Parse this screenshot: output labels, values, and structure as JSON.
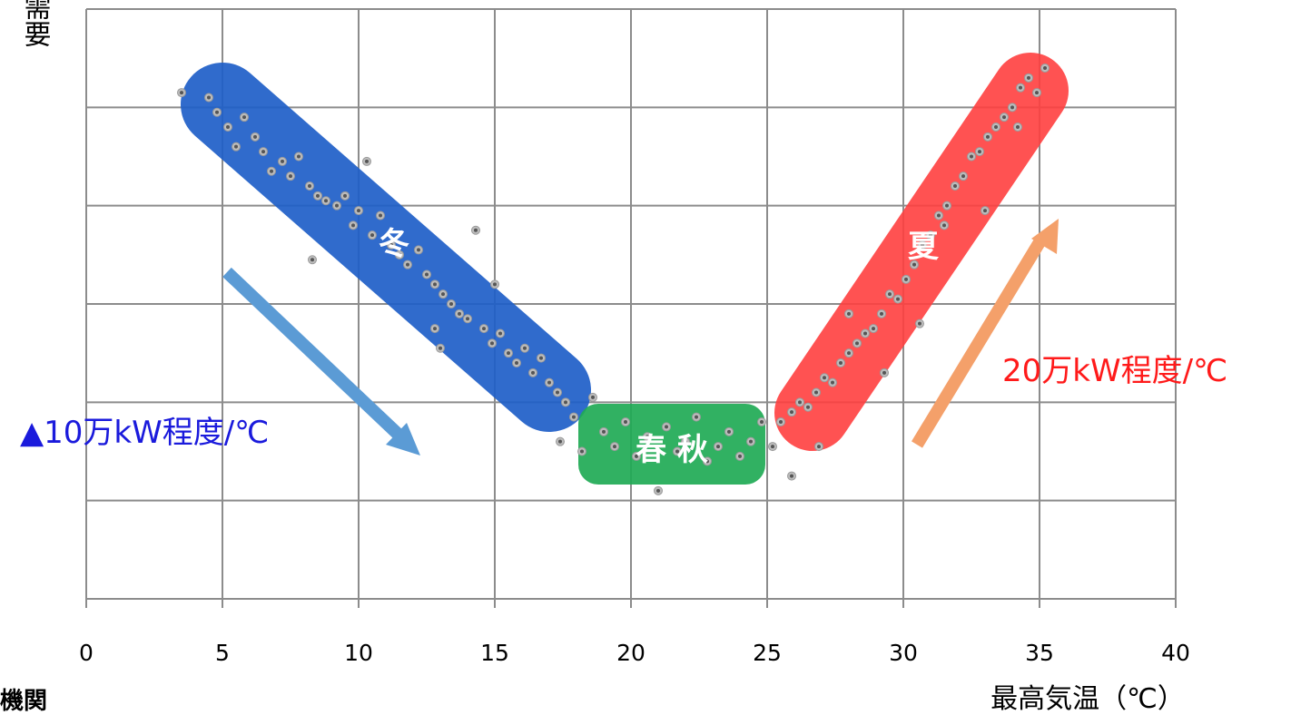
{
  "chart_data": {
    "type": "scatter",
    "xlabel": "最高気温（℃）",
    "ylabel": "需要",
    "xlim": [
      0,
      40
    ],
    "ylim": [
      0,
      6
    ],
    "x_ticks": [
      0,
      5,
      10,
      15,
      20,
      25,
      30,
      35,
      40
    ],
    "grid": true,
    "regions": [
      {
        "name": "冬",
        "color": "#1f5fc8"
      },
      {
        "name": "春 秋",
        "color": "#1faa55"
      },
      {
        "name": "夏",
        "color": "#ff4040"
      }
    ],
    "annotations": [
      {
        "text": "▲10万kW程度/℃",
        "color": "#1a1adc",
        "arrow_color": "#5b9bd5"
      },
      {
        "text": "20万kW程度/℃",
        "color": "#ff1a1a",
        "arrow_color": "#f4a06a"
      }
    ],
    "points": [
      [
        3.5,
        5.15
      ],
      [
        4.5,
        5.1
      ],
      [
        4.8,
        4.95
      ],
      [
        5.2,
        4.8
      ],
      [
        5.5,
        4.6
      ],
      [
        5.8,
        4.9
      ],
      [
        6.2,
        4.7
      ],
      [
        6.5,
        4.55
      ],
      [
        6.8,
        4.35
      ],
      [
        7.2,
        4.45
      ],
      [
        7.5,
        4.3
      ],
      [
        7.8,
        4.5
      ],
      [
        8.2,
        4.2
      ],
      [
        8.5,
        4.1
      ],
      [
        8.8,
        4.05
      ],
      [
        9.2,
        4.0
      ],
      [
        9.5,
        4.1
      ],
      [
        9.8,
        3.8
      ],
      [
        10.0,
        3.95
      ],
      [
        10.3,
        4.45
      ],
      [
        10.5,
        3.7
      ],
      [
        10.8,
        3.9
      ],
      [
        11.2,
        3.6
      ],
      [
        11.5,
        3.5
      ],
      [
        11.8,
        3.4
      ],
      [
        12.2,
        3.55
      ],
      [
        12.5,
        3.3
      ],
      [
        12.8,
        3.2
      ],
      [
        13.1,
        3.1
      ],
      [
        13.4,
        3.0
      ],
      [
        13.7,
        2.9
      ],
      [
        14.0,
        2.85
      ],
      [
        14.3,
        3.75
      ],
      [
        14.6,
        2.75
      ],
      [
        14.9,
        2.6
      ],
      [
        15.2,
        2.7
      ],
      [
        15.5,
        2.5
      ],
      [
        15.8,
        2.4
      ],
      [
        16.1,
        2.55
      ],
      [
        16.4,
        2.3
      ],
      [
        16.7,
        2.45
      ],
      [
        17.0,
        2.2
      ],
      [
        17.3,
        2.1
      ],
      [
        17.6,
        2.0
      ],
      [
        13.0,
        2.55
      ],
      [
        12.8,
        2.75
      ],
      [
        8.3,
        3.45
      ],
      [
        15.0,
        3.2
      ],
      [
        17.4,
        1.6
      ],
      [
        17.9,
        1.85
      ],
      [
        18.2,
        1.5
      ],
      [
        18.6,
        2.05
      ],
      [
        19.0,
        1.7
      ],
      [
        19.4,
        1.55
      ],
      [
        19.8,
        1.8
      ],
      [
        20.2,
        1.45
      ],
      [
        20.6,
        1.65
      ],
      [
        21.0,
        1.1
      ],
      [
        21.3,
        1.75
      ],
      [
        21.7,
        1.5
      ],
      [
        22.0,
        1.6
      ],
      [
        22.4,
        1.85
      ],
      [
        22.8,
        1.4
      ],
      [
        23.2,
        1.55
      ],
      [
        23.6,
        1.7
      ],
      [
        24.0,
        1.45
      ],
      [
        24.4,
        1.6
      ],
      [
        24.8,
        1.8
      ],
      [
        25.2,
        1.55
      ],
      [
        25.9,
        1.25
      ],
      [
        26.9,
        1.55
      ],
      [
        25.5,
        1.8
      ],
      [
        25.9,
        1.9
      ],
      [
        26.2,
        2.0
      ],
      [
        26.5,
        1.95
      ],
      [
        26.8,
        2.1
      ],
      [
        27.1,
        2.25
      ],
      [
        27.4,
        2.2
      ],
      [
        27.7,
        2.4
      ],
      [
        28.0,
        2.5
      ],
      [
        28.3,
        2.6
      ],
      [
        28.6,
        2.7
      ],
      [
        28.9,
        2.75
      ],
      [
        29.2,
        2.9
      ],
      [
        29.5,
        3.1
      ],
      [
        29.8,
        3.05
      ],
      [
        30.1,
        3.25
      ],
      [
        30.4,
        3.4
      ],
      [
        30.7,
        3.6
      ],
      [
        31.0,
        3.7
      ],
      [
        31.3,
        3.9
      ],
      [
        31.6,
        4.0
      ],
      [
        31.9,
        4.2
      ],
      [
        32.2,
        4.3
      ],
      [
        32.5,
        4.5
      ],
      [
        32.8,
        4.55
      ],
      [
        33.1,
        4.7
      ],
      [
        33.4,
        4.8
      ],
      [
        33.7,
        4.9
      ],
      [
        34.0,
        5.0
      ],
      [
        34.3,
        5.2
      ],
      [
        34.6,
        5.3
      ],
      [
        34.9,
        5.15
      ],
      [
        35.2,
        5.4
      ],
      [
        28.0,
        2.9
      ],
      [
        29.3,
        2.3
      ],
      [
        30.6,
        2.8
      ],
      [
        31.5,
        3.8
      ],
      [
        33.0,
        3.95
      ],
      [
        34.2,
        4.8
      ]
    ]
  }
}
